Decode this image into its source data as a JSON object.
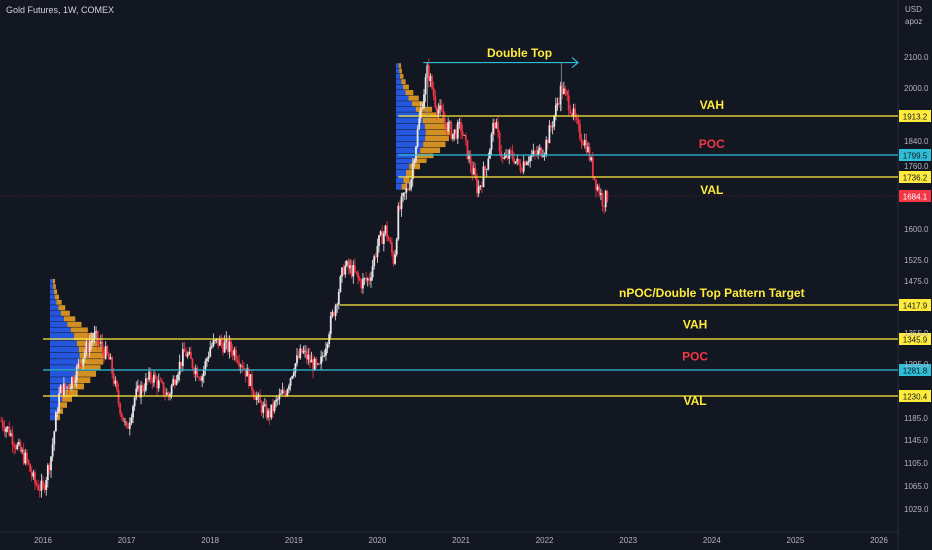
{
  "header": {
    "symbol": "Gold Futures, 1W, COMEX",
    "currency": "USD",
    "unit": "apoz"
  },
  "chart_data": {
    "type": "candlestick",
    "title": "Gold Futures, 1W, COMEX",
    "ylim": [
      1000,
      2180
    ],
    "xlim": [
      2015.5,
      2026.4
    ],
    "y_ticks": [
      2100.0,
      2000.0,
      1840.0,
      1760.0,
      1600.0,
      1525.0,
      1475.0,
      1355.0,
      1295.0,
      1185.0,
      1145.0,
      1105.0,
      1065.0,
      1029.0
    ],
    "y_tick_labels": [
      "2100.0",
      "2000.0",
      "1840.0",
      "1760.0",
      "1600.0",
      "1525.0",
      "1475.0",
      "1355.0",
      "1295.0",
      "1185.0",
      "1145.0",
      "1105.0",
      "1065.0",
      "1029.0"
    ],
    "x_ticks": [
      "2016",
      "2017",
      "2018",
      "2019",
      "2020",
      "2021",
      "2022",
      "2023",
      "2024",
      "2025",
      "2026"
    ],
    "colors": {
      "up": "#e8e8e8",
      "down": "#f23645",
      "yellow": "#ffeb3b",
      "cyan": "#2ebed8",
      "last": "#f23645",
      "poc_label": "#f23645",
      "vp_blue": "#2962ff",
      "vp_orange": "#f5a623"
    },
    "price_points": [
      [
        2015.5,
        1180
      ],
      [
        2015.6,
        1160
      ],
      [
        2015.7,
        1130
      ],
      [
        2015.8,
        1110
      ],
      [
        2015.9,
        1070
      ],
      [
        2016.0,
        1060
      ],
      [
        2016.1,
        1120
      ],
      [
        2016.2,
        1240
      ],
      [
        2016.3,
        1250
      ],
      [
        2016.4,
        1280
      ],
      [
        2016.5,
        1320
      ],
      [
        2016.6,
        1350
      ],
      [
        2016.7,
        1330
      ],
      [
        2016.8,
        1300
      ],
      [
        2016.9,
        1220
      ],
      [
        2017.0,
        1160
      ],
      [
        2017.1,
        1230
      ],
      [
        2017.2,
        1250
      ],
      [
        2017.3,
        1270
      ],
      [
        2017.4,
        1250
      ],
      [
        2017.5,
        1230
      ],
      [
        2017.6,
        1280
      ],
      [
        2017.7,
        1320
      ],
      [
        2017.8,
        1290
      ],
      [
        2017.9,
        1270
      ],
      [
        2018.0,
        1330
      ],
      [
        2018.1,
        1340
      ],
      [
        2018.2,
        1330
      ],
      [
        2018.3,
        1320
      ],
      [
        2018.4,
        1290
      ],
      [
        2018.5,
        1250
      ],
      [
        2018.6,
        1210
      ],
      [
        2018.7,
        1190
      ],
      [
        2018.8,
        1220
      ],
      [
        2018.9,
        1240
      ],
      [
        2019.0,
        1290
      ],
      [
        2019.1,
        1320
      ],
      [
        2019.2,
        1300
      ],
      [
        2019.3,
        1280
      ],
      [
        2019.4,
        1350
      ],
      [
        2019.5,
        1420
      ],
      [
        2019.6,
        1510
      ],
      [
        2019.7,
        1500
      ],
      [
        2019.8,
        1470
      ],
      [
        2019.9,
        1480
      ],
      [
        2020.0,
        1560
      ],
      [
        2020.1,
        1600
      ],
      [
        2020.2,
        1520
      ],
      [
        2020.25,
        1640
      ],
      [
        2020.4,
        1730
      ],
      [
        2020.5,
        1900
      ],
      [
        2020.6,
        2060
      ],
      [
        2020.7,
        1950
      ],
      [
        2020.8,
        1900
      ],
      [
        2020.9,
        1860
      ],
      [
        2021.0,
        1880
      ],
      [
        2021.1,
        1780
      ],
      [
        2021.2,
        1700
      ],
      [
        2021.3,
        1760
      ],
      [
        2021.4,
        1900
      ],
      [
        2021.5,
        1780
      ],
      [
        2021.6,
        1800
      ],
      [
        2021.7,
        1760
      ],
      [
        2021.8,
        1790
      ],
      [
        2021.9,
        1800
      ],
      [
        2022.0,
        1820
      ],
      [
        2022.1,
        1900
      ],
      [
        2022.2,
        2000
      ],
      [
        2022.3,
        1950
      ],
      [
        2022.4,
        1870
      ],
      [
        2022.5,
        1830
      ],
      [
        2022.6,
        1730
      ],
      [
        2022.7,
        1670
      ],
      [
        2022.75,
        1684.1
      ]
    ],
    "horizontal_levels": [
      {
        "name": "VAH",
        "value": 1913.2,
        "label": "1913.2",
        "color": "#ffeb3b",
        "x_start": 2020.25
      },
      {
        "name": "POC",
        "value": 1799.5,
        "label": "1799.5",
        "color": "#2ebed8",
        "x_start": 2020.25
      },
      {
        "name": "VAL",
        "value": 1736.2,
        "label": "1736.2",
        "color": "#ffeb3b",
        "x_start": 2020.25
      },
      {
        "name": "nPOC/Double Top Pattern Target",
        "value": 1417.9,
        "label": "1417.9",
        "color": "#ffeb3b",
        "x_start": 2019.55
      },
      {
        "name": "VAH",
        "value": 1345.9,
        "label": "1345.9",
        "color": "#ffeb3b",
        "x_start": 2016.0
      },
      {
        "name": "POC",
        "value": 1281.8,
        "label": "1281.8",
        "color": "#2ebed8",
        "x_start": 2016.0
      },
      {
        "name": "VAL",
        "value": 1230.4,
        "label": "1230.4",
        "color": "#ffeb3b",
        "x_start": 2016.0
      }
    ],
    "last_price": {
      "value": 1684.1,
      "label": "1684.1"
    },
    "annotations": [
      {
        "text": "Double Top",
        "x": 2021.7,
        "y": 2100.0,
        "color": "#ffeb3b"
      },
      {
        "text": "VAH",
        "x": 2024.0,
        "y": 1935,
        "color": "#ffeb3b"
      },
      {
        "text": "POC",
        "x": 2024.0,
        "y": 1820,
        "color": "#f23645"
      },
      {
        "text": "VAL",
        "x": 2024.0,
        "y": 1690,
        "color": "#ffeb3b"
      },
      {
        "text": "nPOC/Double Top Pattern Target",
        "x": 2024.0,
        "y": 1437,
        "color": "#ffeb3b"
      },
      {
        "text": "VAH",
        "x": 2023.8,
        "y": 1365,
        "color": "#ffeb3b"
      },
      {
        "text": "POC",
        "x": 2023.8,
        "y": 1302,
        "color": "#f23645"
      },
      {
        "text": "VAL",
        "x": 2023.8,
        "y": 1212,
        "color": "#ffeb3b"
      }
    ],
    "double_top_arrow": {
      "x_start": 2020.55,
      "x_end": 2022.4,
      "y": 2082
    }
  }
}
